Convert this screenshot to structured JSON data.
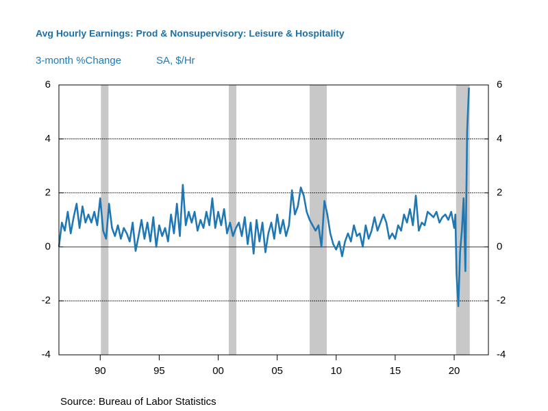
{
  "chart_data": {
    "type": "line",
    "title": "Avg Hourly Earnings: Prod & Nonsupervisory: Leisure & Hospitality",
    "subtitle": "3-month %Change",
    "units": "SA, $/Hr",
    "source": "Source:  Bureau of Labor Statistics",
    "xlim": [
      1986.5,
      2022.9
    ],
    "xticks": [
      {
        "value": 1990,
        "label": "90"
      },
      {
        "value": 1995,
        "label": "95"
      },
      {
        "value": 2000,
        "label": "00"
      },
      {
        "value": 2005,
        "label": "05"
      },
      {
        "value": 2010,
        "label": "10"
      },
      {
        "value": 2015,
        "label": "15"
      },
      {
        "value": 2020,
        "label": "20"
      }
    ],
    "ylim": [
      -4,
      6
    ],
    "yticks": [
      -4,
      -2,
      0,
      2,
      4,
      6
    ],
    "y2lim": [
      -4,
      6
    ],
    "y2ticks": [
      -4,
      -2,
      0,
      2,
      4,
      6
    ],
    "grid": true,
    "shade_color": "#c8c8c8",
    "shaded_periods": [
      [
        1990.06,
        1990.7
      ],
      [
        2000.9,
        2001.54
      ],
      [
        2007.75,
        2009.2
      ],
      [
        2020.16,
        2021.32
      ]
    ],
    "x": [
      1986.5,
      1986.75,
      1987,
      1987.25,
      1987.5,
      1987.75,
      1988,
      1988.25,
      1988.5,
      1988.75,
      1989,
      1989.25,
      1989.5,
      1989.75,
      1990,
      1990.25,
      1990.5,
      1990.75,
      1991,
      1991.25,
      1991.5,
      1991.75,
      1992,
      1992.25,
      1992.5,
      1992.75,
      1993,
      1993.25,
      1993.5,
      1993.75,
      1994,
      1994.25,
      1994.5,
      1994.75,
      1995,
      1995.25,
      1995.5,
      1995.75,
      1996,
      1996.25,
      1996.5,
      1996.75,
      1997,
      1997.25,
      1997.5,
      1997.75,
      1998,
      1998.25,
      1998.5,
      1998.75,
      1999,
      1999.25,
      1999.5,
      1999.75,
      2000,
      2000.25,
      2000.5,
      2000.75,
      2001,
      2001.25,
      2001.5,
      2001.75,
      2002,
      2002.25,
      2002.5,
      2002.75,
      2003,
      2003.25,
      2003.5,
      2003.75,
      2004,
      2004.25,
      2004.5,
      2004.75,
      2005,
      2005.25,
      2005.5,
      2005.75,
      2006,
      2006.25,
      2006.5,
      2006.75,
      2007,
      2007.25,
      2007.5,
      2007.75,
      2008,
      2008.25,
      2008.5,
      2008.75,
      2009,
      2009.25,
      2009.5,
      2009.75,
      2010,
      2010.25,
      2010.5,
      2010.75,
      2011,
      2011.25,
      2011.5,
      2011.75,
      2012,
      2012.25,
      2012.5,
      2012.75,
      2013,
      2013.25,
      2013.5,
      2013.75,
      2014,
      2014.25,
      2014.5,
      2014.75,
      2015,
      2015.25,
      2015.5,
      2015.75,
      2016,
      2016.25,
      2016.5,
      2016.75,
      2017,
      2017.25,
      2017.5,
      2017.75,
      2018,
      2018.25,
      2018.5,
      2018.75,
      2019,
      2019.25,
      2019.5,
      2019.75,
      2020,
      2020.1,
      2020.2,
      2020.35,
      2020.5,
      2020.65,
      2020.8,
      2020.95,
      2021.1,
      2021.25
    ],
    "series": [
      {
        "color": "#1f77b4",
        "values": [
          0,
          0.9,
          0.6,
          1.3,
          0.5,
          1.1,
          1.6,
          0.7,
          1.5,
          0.9,
          1.2,
          0.9,
          1.3,
          0.8,
          1.8,
          0.6,
          0.3,
          1.6,
          0.7,
          0.4,
          0.8,
          0.3,
          0.7,
          0.5,
          0.2,
          0.9,
          -0.15,
          0.4,
          1.0,
          0.3,
          0.9,
          0.2,
          1.1,
          0,
          0.8,
          0.4,
          0.7,
          0.2,
          1.2,
          0.5,
          1.6,
          0.4,
          2.3,
          0.8,
          1.3,
          0.9,
          1.3,
          0.6,
          1.0,
          0.7,
          1.3,
          0.8,
          1.8,
          0.7,
          1.3,
          0.8,
          1.4,
          0.5,
          0.9,
          0.4,
          0.7,
          0.9,
          0.4,
          1.1,
          0.1,
          0.9,
          -0.25,
          1.0,
          0.2,
          0.9,
          -0.2,
          0.5,
          0.9,
          0.3,
          1.2,
          0.5,
          1.0,
          0.4,
          0.8,
          2.1,
          1.2,
          1.5,
          2.2,
          1.9,
          1.3,
          1.0,
          0.8,
          0.6,
          0.8,
          0,
          1.7,
          1.2,
          0.5,
          0.1,
          -0.1,
          0.2,
          -0.35,
          0.2,
          0.5,
          0.2,
          0.8,
          0.4,
          0.5,
          0,
          0.8,
          0.3,
          0.6,
          1.1,
          0.6,
          0.9,
          1.2,
          0.9,
          0.3,
          0.5,
          0.3,
          0.8,
          0.6,
          1.2,
          0.9,
          1.4,
          0.8,
          1.9,
          0.6,
          0.9,
          0.8,
          1.3,
          1.2,
          1.1,
          1.3,
          0.9,
          1.1,
          1.2,
          1.0,
          1.3,
          0.7,
          1.2,
          -1.0,
          -2.2,
          -0.2,
          0.6,
          1.8,
          -0.9,
          4.3,
          5.9
        ]
      }
    ]
  }
}
